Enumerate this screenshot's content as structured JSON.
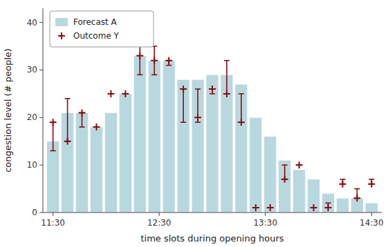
{
  "chart_data": {
    "type": "bar",
    "categories": [
      null,
      null,
      null,
      null,
      null,
      null,
      null,
      null,
      null,
      null,
      null,
      null,
      null,
      null,
      null,
      null,
      null,
      null,
      null,
      null,
      null,
      null,
      null
    ],
    "series": [
      {
        "name": "Forecast A",
        "type": "bar",
        "color": "#b8d8e0",
        "values": [
          15,
          21,
          21,
          18,
          21,
          25,
          33,
          32,
          32,
          28,
          28,
          29,
          29,
          27,
          20,
          16,
          11,
          9,
          7,
          4,
          3,
          3,
          2
        ]
      },
      {
        "name": "Outcome Y",
        "type": "errorbar",
        "color": "#8b0a0a",
        "marker": "plus",
        "values": [
          19,
          15,
          21,
          18,
          25,
          25,
          33,
          32,
          32,
          26,
          20,
          26,
          25,
          19,
          1,
          1,
          7,
          10,
          1,
          1,
          6,
          3,
          6
        ],
        "lower": [
          13,
          15,
          18,
          18,
          25,
          25,
          29,
          29,
          31,
          19,
          19,
          25,
          25,
          19,
          1,
          1,
          7,
          10,
          1,
          1,
          6,
          3,
          6
        ],
        "upper": [
          19,
          24,
          21,
          18,
          25,
          25,
          35,
          35,
          32,
          26,
          26,
          26,
          32,
          25,
          1,
          1,
          10,
          10,
          1,
          2,
          7,
          5,
          7
        ]
      }
    ],
    "xlabel": "time slots during opening hours",
    "ylabel": "congestion level (# people)",
    "ylim": [
      0,
      43
    ],
    "yticks": [
      0,
      10,
      20,
      30,
      40
    ],
    "xlim": [
      -0.7,
      22.7
    ],
    "xticks": [
      {
        "value": 0,
        "label": "11:30"
      },
      {
        "value": 7.333333333333333,
        "label": "12:30"
      },
      {
        "value": 14.666666666666666,
        "label": "13:30"
      },
      {
        "value": 22,
        "label": "14:30"
      }
    ],
    "grid": false,
    "legend": "upper left"
  }
}
